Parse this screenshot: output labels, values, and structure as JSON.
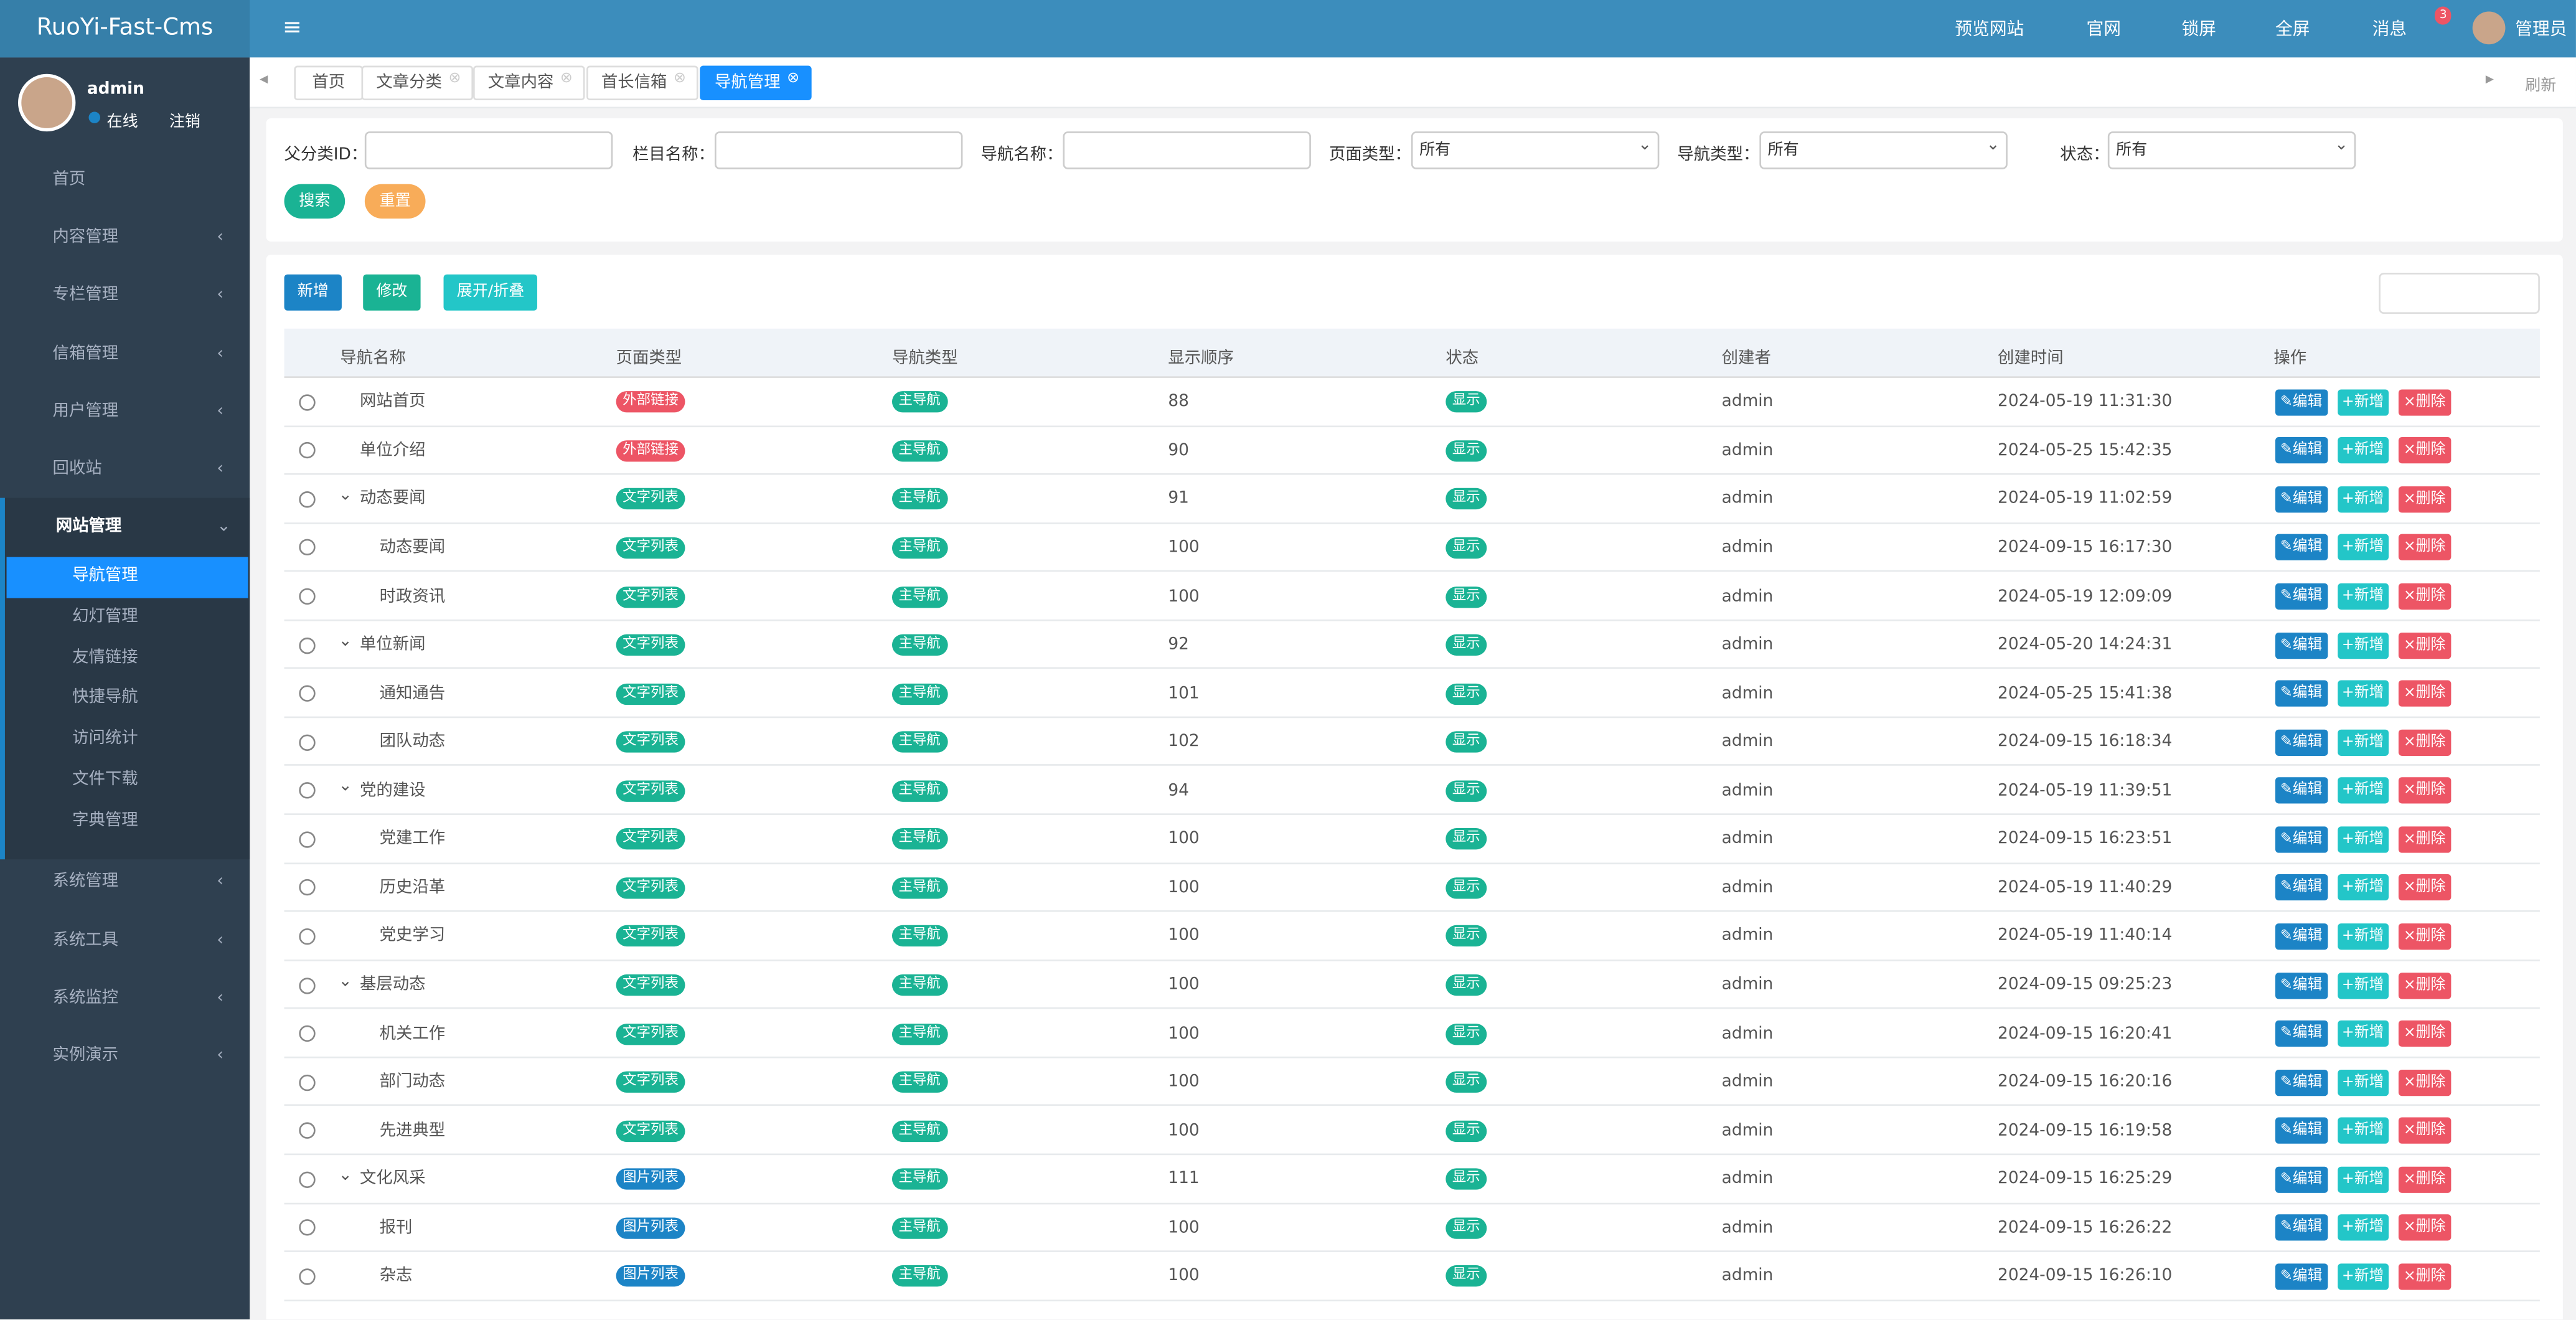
{
  "header": {
    "logo": "RuoYi-Fast-Cms",
    "nav": [
      "预览网站",
      "官网",
      "锁屏",
      "全屏",
      "消息"
    ],
    "badge": "3",
    "user": "管理员"
  },
  "sidebar": {
    "user": "admin",
    "status": "在线",
    "logout": "注销",
    "menu": [
      {
        "label": "首页"
      },
      {
        "label": "内容管理"
      },
      {
        "label": "专栏管理"
      },
      {
        "label": "信箱管理"
      },
      {
        "label": "用户管理"
      },
      {
        "label": "回收站"
      },
      {
        "label": "网站管理",
        "children": [
          "导航管理",
          "幻灯管理",
          "友情链接",
          "快捷导航",
          "访问统计",
          "文件下载",
          "字典管理"
        ]
      },
      {
        "label": "系统管理"
      },
      {
        "label": "系统工具"
      },
      {
        "label": "系统监控"
      },
      {
        "label": "实例演示"
      }
    ]
  },
  "tabs": {
    "items": [
      "首页",
      "文章分类",
      "文章内容",
      "首长信箱",
      "导航管理"
    ],
    "active": 4,
    "refresh": "刷新"
  },
  "search": {
    "fields": [
      {
        "label": "父分类ID："
      },
      {
        "label": "栏目名称："
      },
      {
        "label": "导航名称："
      },
      {
        "label": "页面类型：",
        "value": "所有"
      },
      {
        "label": "导航类型：",
        "value": "所有"
      },
      {
        "label": "状态：",
        "value": "所有"
      }
    ],
    "buttons": [
      "搜索",
      "重置"
    ]
  },
  "toolbar": [
    "新增",
    "修改",
    "展开/折叠"
  ],
  "table": {
    "columns": [
      "导航名称",
      "页面类型",
      "导航类型",
      "显示顺序",
      "状态",
      "创建者",
      "创建时间",
      "操作"
    ],
    "actions": [
      "编辑",
      "新增",
      "删除"
    ],
    "rows": [
      {
        "name": "网站首页",
        "page_type": {
          "text": "外部链接",
          "color": "#ed5565"
        },
        "nav_type": "主导航",
        "order": "88",
        "status": "显示",
        "creator": "admin",
        "time": "2024-05-19 11:31:30"
      },
      {
        "name": "单位介绍",
        "page_type": {
          "text": "外部链接",
          "color": "#ed5565"
        },
        "nav_type": "主导航",
        "order": "90",
        "status": "显示",
        "creator": "admin",
        "time": "2024-05-25 15:42:35"
      },
      {
        "name": "动态要闻",
        "page_type": {
          "text": "文字列表",
          "color": "#1ab394"
        },
        "nav_type": "主导航",
        "order": "91",
        "status": "显示",
        "creator": "admin",
        "time": "2024-05-19 11:02:59",
        "children": [
          {
            "name": "动态要闻",
            "page_type": {
              "text": "文字列表",
              "color": "#1ab394"
            },
            "nav_type": "主导航",
            "order": "100",
            "status": "显示",
            "creator": "admin",
            "time": "2024-09-15 16:17:30"
          },
          {
            "name": "时政资讯",
            "page_type": {
              "text": "文字列表",
              "color": "#1ab394"
            },
            "nav_type": "主导航",
            "order": "100",
            "status": "显示",
            "creator": "admin",
            "time": "2024-05-19 12:09:09"
          }
        ]
      },
      {
        "name": "单位新闻",
        "page_type": {
          "text": "文字列表",
          "color": "#1ab394"
        },
        "nav_type": "主导航",
        "order": "92",
        "status": "显示",
        "creator": "admin",
        "time": "2024-05-20 14:24:31",
        "children": [
          {
            "name": "通知通告",
            "page_type": {
              "text": "文字列表",
              "color": "#1ab394"
            },
            "nav_type": "主导航",
            "order": "101",
            "status": "显示",
            "creator": "admin",
            "time": "2024-05-25 15:41:38"
          },
          {
            "name": "团队动态",
            "page_type": {
              "text": "文字列表",
              "color": "#1ab394"
            },
            "nav_type": "主导航",
            "order": "102",
            "status": "显示",
            "creator": "admin",
            "time": "2024-09-15 16:18:34"
          }
        ]
      },
      {
        "name": "党的建设",
        "page_type": {
          "text": "文字列表",
          "color": "#1ab394"
        },
        "nav_type": "主导航",
        "order": "94",
        "status": "显示",
        "creator": "admin",
        "time": "2024-05-19 11:39:51",
        "children": [
          {
            "name": "党建工作",
            "page_type": {
              "text": "文字列表",
              "color": "#1ab394"
            },
            "nav_type": "主导航",
            "order": "100",
            "status": "显示",
            "creator": "admin",
            "time": "2024-09-15 16:23:51"
          },
          {
            "name": "历史沿革",
            "page_type": {
              "text": "文字列表",
              "color": "#1ab394"
            },
            "nav_type": "主导航",
            "order": "100",
            "status": "显示",
            "creator": "admin",
            "time": "2024-05-19 11:40:29"
          },
          {
            "name": "党史学习",
            "page_type": {
              "text": "文字列表",
              "color": "#1ab394"
            },
            "nav_type": "主导航",
            "order": "100",
            "status": "显示",
            "creator": "admin",
            "time": "2024-05-19 11:40:14"
          }
        ]
      },
      {
        "name": "基层动态",
        "page_type": {
          "text": "文字列表",
          "color": "#1ab394"
        },
        "nav_type": "主导航",
        "order": "100",
        "status": "显示",
        "creator": "admin",
        "time": "2024-09-15 09:25:23",
        "children": [
          {
            "name": "机关工作",
            "page_type": {
              "text": "文字列表",
              "color": "#1ab394"
            },
            "nav_type": "主导航",
            "order": "100",
            "status": "显示",
            "creator": "admin",
            "time": "2024-09-15 16:20:41"
          },
          {
            "name": "部门动态",
            "page_type": {
              "text": "文字列表",
              "color": "#1ab394"
            },
            "nav_type": "主导航",
            "order": "100",
            "status": "显示",
            "creator": "admin",
            "time": "2024-09-15 16:20:16"
          },
          {
            "name": "先进典型",
            "page_type": {
              "text": "文字列表",
              "color": "#1ab394"
            },
            "nav_type": "主导航",
            "order": "100",
            "status": "显示",
            "creator": "admin",
            "time": "2024-09-15 16:19:58"
          }
        ]
      },
      {
        "name": "文化风采",
        "page_type": {
          "text": "图片列表",
          "color": "#1c84c6"
        },
        "nav_type": "主导航",
        "order": "111",
        "status": "显示",
        "creator": "admin",
        "time": "2024-09-15 16:25:29",
        "children": [
          {
            "name": "报刊",
            "page_type": {
              "text": "图片列表",
              "color": "#1c84c6"
            },
            "nav_type": "主导航",
            "order": "100",
            "status": "显示",
            "creator": "admin",
            "time": "2024-09-15 16:26:22"
          },
          {
            "name": "杂志",
            "page_type": {
              "text": "图片列表",
              "color": "#1c84c6"
            },
            "nav_type": "主导航",
            "order": "100",
            "status": "显示",
            "creator": "admin",
            "time": "2024-09-15 16:26:10"
          }
        ]
      }
    ]
  }
}
